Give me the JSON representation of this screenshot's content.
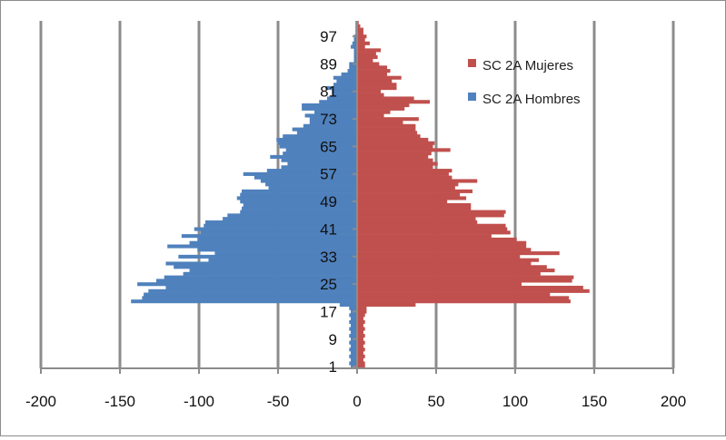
{
  "chart_data": {
    "type": "bar",
    "orientation": "horizontal",
    "title": "",
    "xlabel": "",
    "ylabel": "",
    "xlim": [
      -200,
      200
    ],
    "xticks": [
      -200,
      -150,
      -100,
      -50,
      0,
      50,
      100,
      150,
      200
    ],
    "ages": [
      1,
      101
    ],
    "age_tick_labels": [
      "1",
      "9",
      "17",
      "25",
      "33",
      "41",
      "49",
      "57",
      "65",
      "73",
      "81",
      "89",
      "97"
    ],
    "grid": "vertical major gridlines",
    "legend_position": "right",
    "series": [
      {
        "name": "SC 2A Mujeres",
        "color": "#c0504d",
        "values": [
          5,
          5,
          4,
          5,
          4,
          5,
          4,
          5,
          4,
          5,
          4,
          5,
          4,
          5,
          4,
          5,
          6,
          6,
          37,
          135,
          134,
          122,
          147,
          143,
          104,
          136,
          137,
          116,
          125,
          120,
          110,
          115,
          103,
          128,
          110,
          107,
          107,
          101,
          85,
          97,
          95,
          94,
          76,
          75,
          93,
          94,
          72,
          72,
          57,
          69,
          65,
          73,
          62,
          64,
          76,
          60,
          58,
          60,
          48,
          51,
          48,
          45,
          47,
          59,
          48,
          49,
          45,
          40,
          38,
          37,
          37,
          29,
          39,
          17,
          21,
          30,
          33,
          46,
          36,
          17,
          15,
          25,
          25,
          22,
          28,
          19,
          21,
          19,
          14,
          10,
          13,
          12,
          15,
          5,
          8,
          5,
          6,
          4,
          4,
          2,
          1
        ]
      },
      {
        "name": "SC 2A Hombres",
        "color": "#4f81bd",
        "values": [
          -4,
          -5,
          -4,
          -5,
          -4,
          -5,
          -4,
          -5,
          -4,
          -5,
          -4,
          -5,
          -4,
          -5,
          -4,
          -5,
          -4,
          -5,
          -11,
          -143,
          -136,
          -135,
          -132,
          -121,
          -139,
          -127,
          -122,
          -110,
          -106,
          -116,
          -121,
          -94,
          -113,
          -90,
          -101,
          -120,
          -106,
          -101,
          -111,
          -99,
          -103,
          -97,
          -96,
          -85,
          -82,
          -74,
          -73,
          -72,
          -74,
          -76,
          -74,
          -73,
          -56,
          -58,
          -61,
          -65,
          -72,
          -57,
          -48,
          -44,
          -48,
          -55,
          -47,
          -45,
          -49,
          -50,
          -51,
          -47,
          -38,
          -41,
          -34,
          -30,
          -30,
          -33,
          -27,
          -35,
          -35,
          -24,
          -19,
          -16,
          -16,
          -20,
          -15,
          -13,
          -15,
          -10,
          -6,
          -5,
          -5,
          -2,
          -2,
          -2,
          -2,
          -4,
          -3,
          -2,
          -2,
          -1,
          -1,
          -1,
          -1
        ]
      }
    ]
  }
}
